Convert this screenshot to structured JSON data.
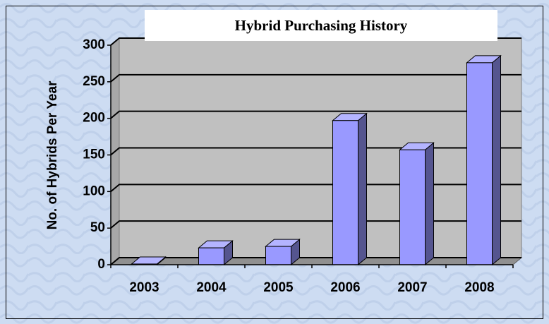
{
  "chart_data": {
    "type": "bar",
    "title": "Hybrid Purchasing History",
    "y_label": "No. of Hybrids Per Year",
    "categories": [
      "2003",
      "2004",
      "2005",
      "2006",
      "2007",
      "2008"
    ],
    "values": [
      1,
      23,
      25,
      197,
      157,
      276
    ],
    "color": "#9999ff",
    "ylim": [
      0,
      300
    ],
    "yticks": [
      0,
      50,
      100,
      150,
      200,
      250,
      300
    ],
    "grid": true
  }
}
